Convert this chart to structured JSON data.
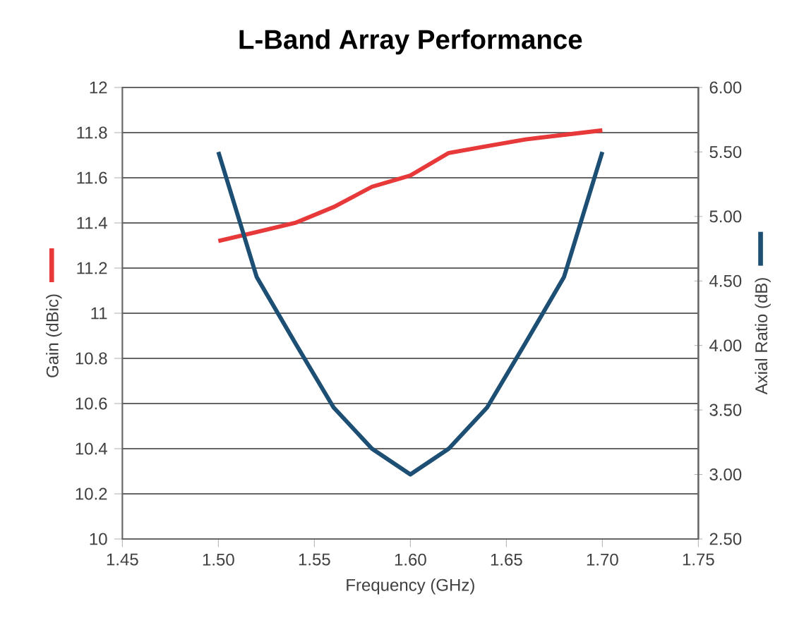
{
  "chart_data": {
    "type": "line",
    "title": "L-Band Array Performance",
    "xlabel": "Frequency (GHz)",
    "ylabel": "Gain (dBic)",
    "y2label": "Axial Ratio (dB)",
    "x": [
      1.5,
      1.52,
      1.54,
      1.56,
      1.58,
      1.6,
      1.62,
      1.64,
      1.66,
      1.68,
      1.7
    ],
    "series": [
      {
        "color": "#e8393a",
        "axis": "y",
        "values": [
          11.32,
          11.36,
          11.4,
          11.47,
          11.56,
          11.61,
          11.71,
          11.74,
          11.77,
          11.79,
          11.81
        ]
      },
      {
        "color": "#1d4e73",
        "axis": "y2",
        "values": [
          5.5,
          4.53,
          4.02,
          3.52,
          3.2,
          3.0,
          3.2,
          3.52,
          4.02,
          4.53,
          5.5
        ]
      }
    ],
    "xlim": [
      1.45,
      1.75
    ],
    "xticks": [
      {
        "value": 1.45,
        "label": "1.45"
      },
      {
        "value": 1.5,
        "label": "1.50"
      },
      {
        "value": 1.55,
        "label": "1.55"
      },
      {
        "value": 1.6,
        "label": "1.60"
      },
      {
        "value": 1.65,
        "label": "1.65"
      },
      {
        "value": 1.7,
        "label": "1.70"
      },
      {
        "value": 1.75,
        "label": "1.75"
      }
    ],
    "ylim": [
      10,
      12
    ],
    "yticks": [
      10,
      10.2,
      10.4,
      10.6,
      10.8,
      11,
      11.2,
      11.4,
      11.6,
      11.8,
      12
    ],
    "y2lim": [
      2.5,
      6
    ],
    "y2ticks": [
      {
        "value": 2.5,
        "label": "2.50"
      },
      {
        "value": 3,
        "label": "3.00"
      },
      {
        "value": 3.5,
        "label": "3.50"
      },
      {
        "value": 4,
        "label": "4.00"
      },
      {
        "value": 4.5,
        "label": "4.50"
      },
      {
        "value": 5,
        "label": "5.00"
      },
      {
        "value": 5.5,
        "label": "5.50"
      },
      {
        "value": 6,
        "label": "6.00"
      }
    ],
    "grid": "y",
    "line_style": "solid",
    "marker": "none"
  }
}
